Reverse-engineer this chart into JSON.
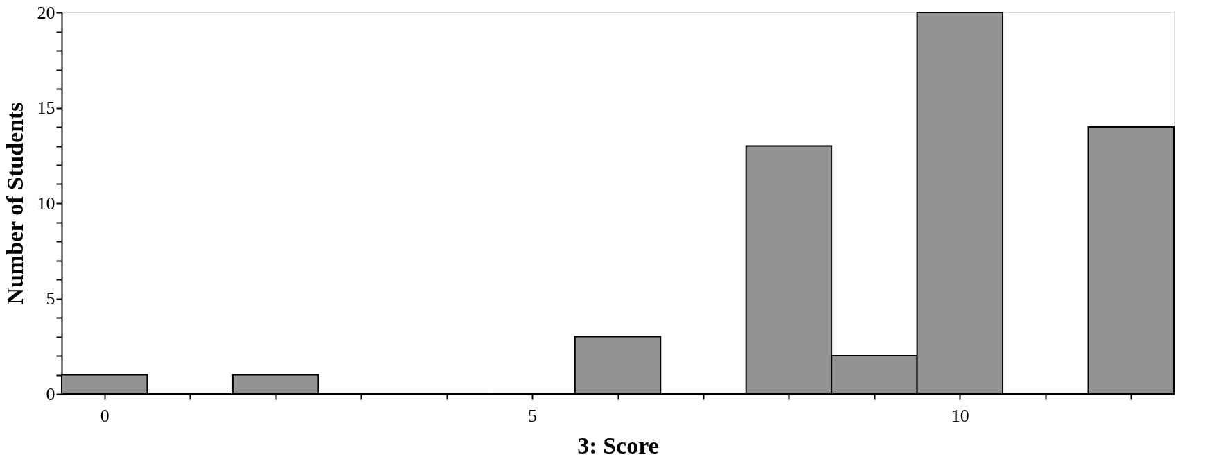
{
  "chart_data": {
    "type": "histogram",
    "xlabel": "3: Score",
    "ylabel": "Number of Students",
    "bins": [
      -0.5,
      0.5,
      1.5,
      2.5,
      3.5,
      4.5,
      5.5,
      6.5,
      7.5,
      8.5,
      9.5,
      10.5,
      11.5,
      12.5
    ],
    "values": [
      1,
      0,
      1,
      0,
      0,
      0,
      3,
      0,
      13,
      2,
      20,
      0,
      14
    ],
    "color": "#939393",
    "xlim": [
      -0.5,
      12.5
    ],
    "xticks": [
      0,
      {
        "value": 1,
        "label": null
      },
      {
        "value": 2,
        "label": null
      },
      {
        "value": 3,
        "label": null
      },
      {
        "value": 4,
        "label": null
      },
      5,
      {
        "value": 6,
        "label": null
      },
      {
        "value": 7,
        "label": null
      },
      {
        "value": 8,
        "label": null
      },
      {
        "value": 9,
        "label": null
      },
      10,
      {
        "value": 11,
        "label": null
      },
      {
        "value": 12,
        "label": null
      }
    ],
    "ylim": [
      0,
      20
    ],
    "yticks": [
      0,
      {
        "value": 1,
        "label": null
      },
      {
        "value": 2,
        "label": null
      },
      {
        "value": 3,
        "label": null
      },
      {
        "value": 4,
        "label": null
      },
      5,
      {
        "value": 6,
        "label": null
      },
      {
        "value": 7,
        "label": null
      },
      {
        "value": 8,
        "label": null
      },
      {
        "value": 9,
        "label": null
      },
      10,
      {
        "value": 11,
        "label": null
      },
      {
        "value": 12,
        "label": null
      },
      {
        "value": 13,
        "label": null
      },
      {
        "value": 14,
        "label": null
      },
      15,
      {
        "value": 16,
        "label": null
      },
      {
        "value": 17,
        "label": null
      },
      {
        "value": 18,
        "label": null
      },
      {
        "value": 19,
        "label": null
      },
      20
    ],
    "grid": false
  }
}
